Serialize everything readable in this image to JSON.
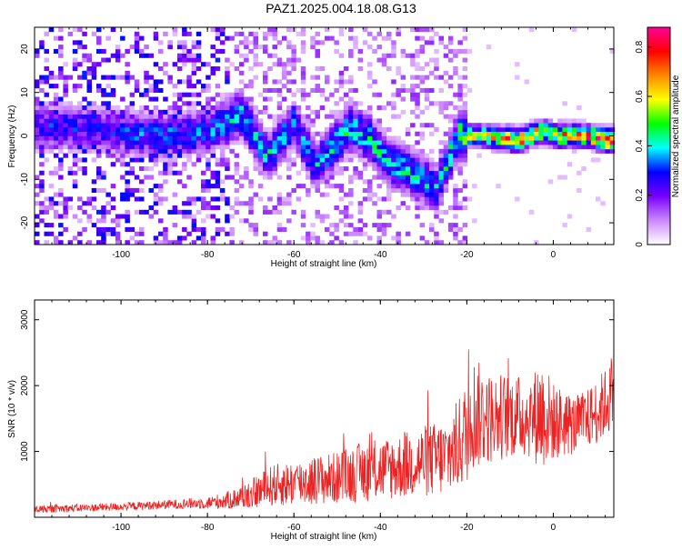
{
  "figure": {
    "title": "PAZ1.2025.004.18.08.G13"
  },
  "chart_data": [
    {
      "type": "heatmap",
      "xlabel": "Height of straight line (km)",
      "ylabel": "Frequency (Hz)",
      "xlim": [
        -120,
        14
      ],
      "ylim": [
        -25,
        25
      ],
      "xticks": [
        -100,
        -80,
        -60,
        -40,
        -20,
        0
      ],
      "yticks": [
        -20,
        -10,
        0,
        10,
        20
      ],
      "colorbar": {
        "label": "Normalized spectral amplitude",
        "range": [
          0,
          0.88
        ],
        "ticks": [
          0,
          0.2,
          0.4,
          0.6,
          0.8
        ],
        "colors": [
          "#ffffff",
          "#cc88ff",
          "#7700ff",
          "#0000ff",
          "#00ffff",
          "#00ff00",
          "#ffff00",
          "#ff8800",
          "#ff0000",
          "#ff0099"
        ]
      },
      "ridge": [
        {
          "x": -110,
          "f": 2,
          "a": 0.3
        },
        {
          "x": -100,
          "f": 1,
          "a": 0.32
        },
        {
          "x": -90,
          "f": 0,
          "a": 0.35
        },
        {
          "x": -80,
          "f": 1,
          "a": 0.35
        },
        {
          "x": -72,
          "f": 5,
          "a": 0.45
        },
        {
          "x": -66,
          "f": -5,
          "a": 0.42
        },
        {
          "x": -60,
          "f": 3,
          "a": 0.4
        },
        {
          "x": -55,
          "f": -7,
          "a": 0.4
        },
        {
          "x": -47,
          "f": 2,
          "a": 0.45
        },
        {
          "x": -42,
          "f": -1,
          "a": 0.45
        },
        {
          "x": -38,
          "f": -6,
          "a": 0.42
        },
        {
          "x": -32,
          "f": -9,
          "a": 0.45
        },
        {
          "x": -27,
          "f": -12,
          "a": 0.38
        },
        {
          "x": -22,
          "f": 0,
          "a": 0.55
        },
        {
          "x": -15,
          "f": 0,
          "a": 0.65
        },
        {
          "x": -8,
          "f": -1,
          "a": 0.8
        },
        {
          "x": -3,
          "f": 1,
          "a": 0.7
        },
        {
          "x": 2,
          "f": 0,
          "a": 0.75
        },
        {
          "x": 8,
          "f": 0,
          "a": 0.8
        },
        {
          "x": 13,
          "f": -1,
          "a": 0.88
        }
      ]
    },
    {
      "type": "line",
      "xlabel": "Height of straight line (km)",
      "ylabel": "SNR (10 * v/v)",
      "xlim": [
        -120,
        14
      ],
      "ylim": [
        0,
        3300
      ],
      "xticks": [
        -100,
        -80,
        -60,
        -40,
        -20,
        0
      ],
      "yticks": [
        1000,
        2000,
        3000
      ],
      "series": [
        {
          "color": "#ee2222",
          "x": [
            -120,
            -110,
            -100,
            -90,
            -80,
            -75,
            -70,
            -65,
            -60,
            -55,
            -50,
            -45,
            -40,
            -35,
            -30,
            -25,
            -22,
            -20,
            -19,
            -15,
            -10,
            -5,
            -3,
            0,
            5,
            8,
            10,
            13,
            14
          ],
          "values": [
            120,
            140,
            160,
            190,
            220,
            260,
            350,
            480,
            520,
            560,
            600,
            680,
            720,
            780,
            850,
            900,
            1100,
            1300,
            1600,
            1500,
            1550,
            1500,
            1600,
            1450,
            1400,
            1500,
            1600,
            1800,
            2100
          ],
          "noise": [
            60,
            60,
            60,
            70,
            90,
            140,
            220,
            320,
            350,
            380,
            400,
            450,
            480,
            500,
            550,
            600,
            700,
            800,
            900,
            700,
            650,
            600,
            900,
            600,
            450,
            450,
            500,
            550,
            550
          ]
        }
      ]
    }
  ]
}
